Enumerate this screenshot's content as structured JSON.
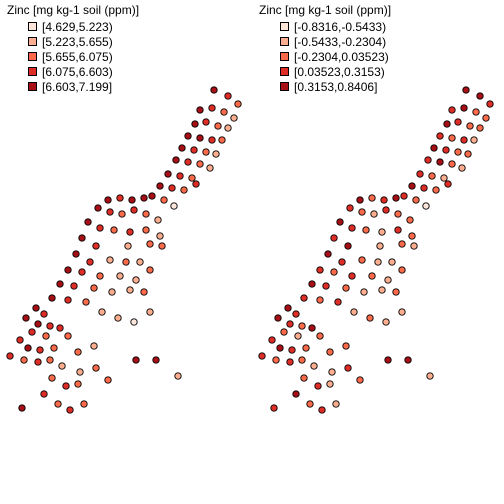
{
  "panels": [
    {
      "title": "Zinc [mg kg-1 soil (ppm)]",
      "legend": [
        {
          "label": "[4.629,5.223)",
          "color": "#fee5d9"
        },
        {
          "label": "[5.223,5.655)",
          "color": "#fcae91"
        },
        {
          "label": "[5.655,6.075)",
          "color": "#fb6a4a"
        },
        {
          "label": "[6.075,6.603)",
          "color": "#de2d26"
        },
        {
          "label": "[6.603,7.199]",
          "color": "#a50f15"
        }
      ]
    },
    {
      "title": "Zinc [mg kg-1 soil (ppm)]",
      "legend": [
        {
          "label": "[-0.8316,-0.5433)",
          "color": "#fee5d9"
        },
        {
          "label": "[-0.5433,-0.2304)",
          "color": "#fcae91"
        },
        {
          "label": "[-0.2304,0.03523)",
          "color": "#fb6a4a"
        },
        {
          "label": "[0.03523,0.3153)",
          "color": "#de2d26"
        },
        {
          "label": "[0.3153,0.8406]",
          "color": "#a50f15"
        }
      ]
    }
  ]
}
